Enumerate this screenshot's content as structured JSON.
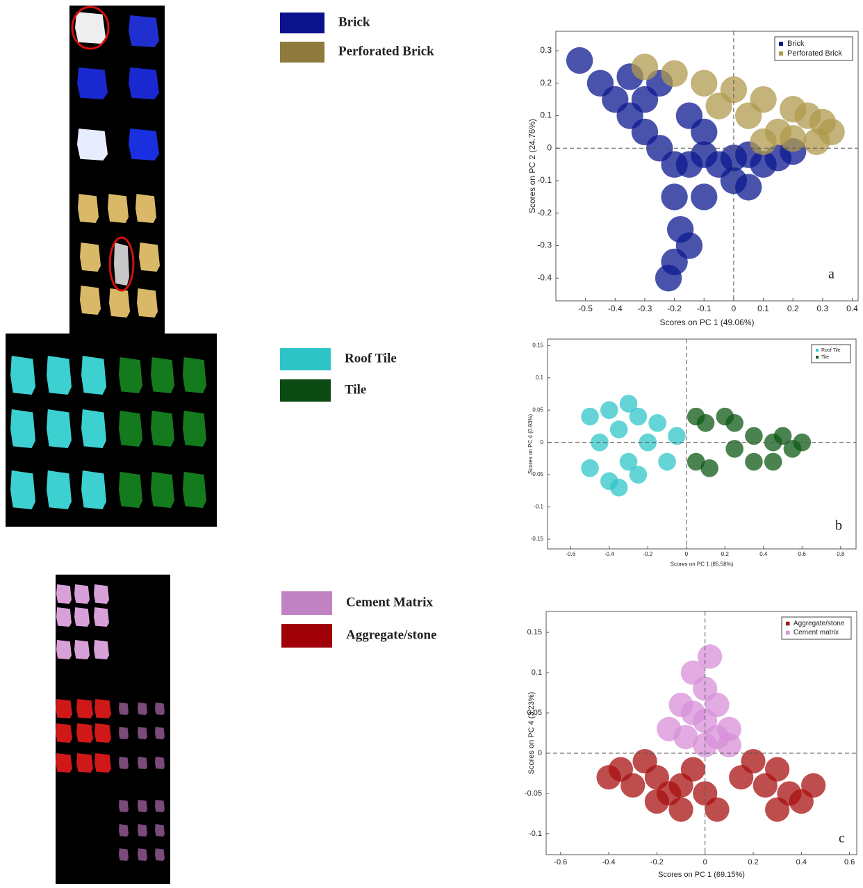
{
  "chart_data": [
    {
      "type": "scatter",
      "panel_label": "a",
      "x_label": "Scores on PC 1 (49.06%)",
      "y_label": "Scores on PC 2 (24.76%)",
      "xlim": [
        -0.6,
        0.42
      ],
      "ylim": [
        -0.47,
        0.36
      ],
      "xticks": [
        -0.5,
        -0.4,
        -0.3,
        -0.2,
        -0.1,
        0,
        0.1,
        0.2,
        0.3,
        0.4
      ],
      "yticks": [
        -0.4,
        -0.3,
        -0.2,
        -0.1,
        0,
        0.1,
        0.2,
        0.3
      ],
      "zero_lines": true,
      "legend": "upper right",
      "key_swatches": [
        {
          "label": "Brick",
          "color": "#0a128c"
        },
        {
          "label": "Perforated Brick",
          "color": "#8d7a3c"
        }
      ],
      "series": [
        {
          "name": "Brick",
          "color": "#0d1a90",
          "x": [
            -0.52,
            -0.45,
            -0.4,
            -0.35,
            -0.3,
            -0.25,
            -0.2,
            -0.15,
            -0.1,
            -0.05,
            0,
            0.05,
            0.1,
            0.15,
            0.2,
            -0.2,
            -0.18,
            -0.2,
            -0.22,
            -0.15,
            -0.1,
            -0.3,
            -0.25,
            -0.35,
            -0.15,
            -0.1,
            0,
            0.05
          ],
          "y": [
            0.27,
            0.2,
            0.15,
            0.1,
            0.05,
            0,
            -0.05,
            -0.05,
            -0.02,
            -0.05,
            -0.03,
            -0.02,
            -0.05,
            -0.03,
            -0.01,
            -0.15,
            -0.25,
            -0.35,
            -0.4,
            -0.3,
            -0.15,
            0.15,
            0.2,
            0.22,
            0.1,
            0.05,
            -0.1,
            -0.12
          ]
        },
        {
          "name": "Perforated Brick",
          "color": "#b09a4e",
          "x": [
            -0.3,
            -0.2,
            -0.1,
            0,
            0.1,
            0.2,
            0.3,
            0.33,
            0.05,
            0.15,
            0.2,
            0.1,
            -0.05,
            0.25,
            0.28
          ],
          "y": [
            0.25,
            0.23,
            0.2,
            0.18,
            0.15,
            0.12,
            0.08,
            0.05,
            0.1,
            0.05,
            0.03,
            0.02,
            0.13,
            0.1,
            0.02
          ]
        }
      ]
    },
    {
      "type": "scatter",
      "panel_label": "b",
      "x_label": "Scores on PC 1 (85.58%)",
      "y_label": "Scores on PC 4 (0.93%)",
      "xlim": [
        -0.72,
        0.88
      ],
      "ylim": [
        -0.165,
        0.16
      ],
      "xticks": [
        -0.6,
        -0.4,
        -0.2,
        0,
        0.2,
        0.4,
        0.6,
        0.8
      ],
      "yticks": [
        -0.15,
        -0.1,
        -0.05,
        0,
        0.05,
        0.1,
        0.15
      ],
      "zero_lines": true,
      "legend": "upper right",
      "key_swatches": [
        {
          "label": "Roof Tile",
          "color": "#2ec4c6"
        },
        {
          "label": "Tile",
          "color": "#0b4a12"
        }
      ],
      "series": [
        {
          "name": "Roof Tile",
          "color": "#30c6c8",
          "x": [
            -0.5,
            -0.5,
            -0.45,
            -0.4,
            -0.4,
            -0.35,
            -0.3,
            -0.25,
            -0.25,
            -0.2,
            -0.15,
            -0.1,
            -0.05,
            -0.3,
            -0.35
          ],
          "y": [
            0.04,
            -0.04,
            0,
            0.05,
            -0.06,
            0.02,
            -0.03,
            0.04,
            -0.05,
            0,
            0.03,
            -0.03,
            0.01,
            0.06,
            -0.07
          ]
        },
        {
          "name": "Tile",
          "color": "#0e5a14",
          "x": [
            0.05,
            0.1,
            0.2,
            0.25,
            0.05,
            0.12,
            0.25,
            0.35,
            0.45,
            0.55,
            0.6,
            0.35,
            0.45,
            0.5
          ],
          "y": [
            0.04,
            0.03,
            0.04,
            0.03,
            -0.03,
            -0.04,
            -0.01,
            0.01,
            0,
            -0.01,
            0,
            -0.03,
            -0.03,
            0.01
          ]
        }
      ]
    },
    {
      "type": "scatter",
      "panel_label": "c",
      "x_label": "Scores on PC 1 (69.15%)",
      "y_label": "Scores on PC 4 (3.23%)",
      "xlim": [
        -0.66,
        0.63
      ],
      "ylim": [
        -0.126,
        0.176
      ],
      "xticks": [
        -0.6,
        -0.4,
        -0.2,
        0,
        0.2,
        0.4,
        0.6
      ],
      "yticks": [
        -0.1,
        -0.05,
        0,
        0.05,
        0.1,
        0.15
      ],
      "zero_lines": true,
      "legend": "upper right",
      "key_swatches": [
        {
          "label": "Cement Matrix",
          "color": "#c283c4"
        },
        {
          "label": "Aggregate/stone",
          "color": "#a00008"
        }
      ],
      "series": [
        {
          "name": "Aggregate/stone",
          "color": "#a81212",
          "x": [
            -0.4,
            -0.35,
            -0.3,
            -0.25,
            -0.2,
            -0.15,
            -0.1,
            -0.05,
            0,
            0.05,
            -0.1,
            -0.2,
            0.15,
            0.2,
            0.25,
            0.3,
            0.35,
            0.4,
            0.45,
            0.3
          ],
          "y": [
            -0.03,
            -0.02,
            -0.04,
            -0.01,
            -0.03,
            -0.05,
            -0.04,
            -0.02,
            -0.05,
            -0.07,
            -0.07,
            -0.06,
            -0.03,
            -0.01,
            -0.04,
            -0.02,
            -0.05,
            -0.06,
            -0.04,
            -0.07
          ]
        },
        {
          "name": "Cement matrix",
          "color": "#d890d8",
          "x": [
            -0.1,
            -0.05,
            0,
            0,
            0.05,
            0.05,
            0.1,
            -0.05,
            0.02,
            -0.15,
            -0.08,
            0.1,
            0
          ],
          "y": [
            0.06,
            0.05,
            0.08,
            0.04,
            0.02,
            0.06,
            0.01,
            0.1,
            0.12,
            0.03,
            0.02,
            0.03,
            0.01
          ]
        }
      ]
    }
  ]
}
